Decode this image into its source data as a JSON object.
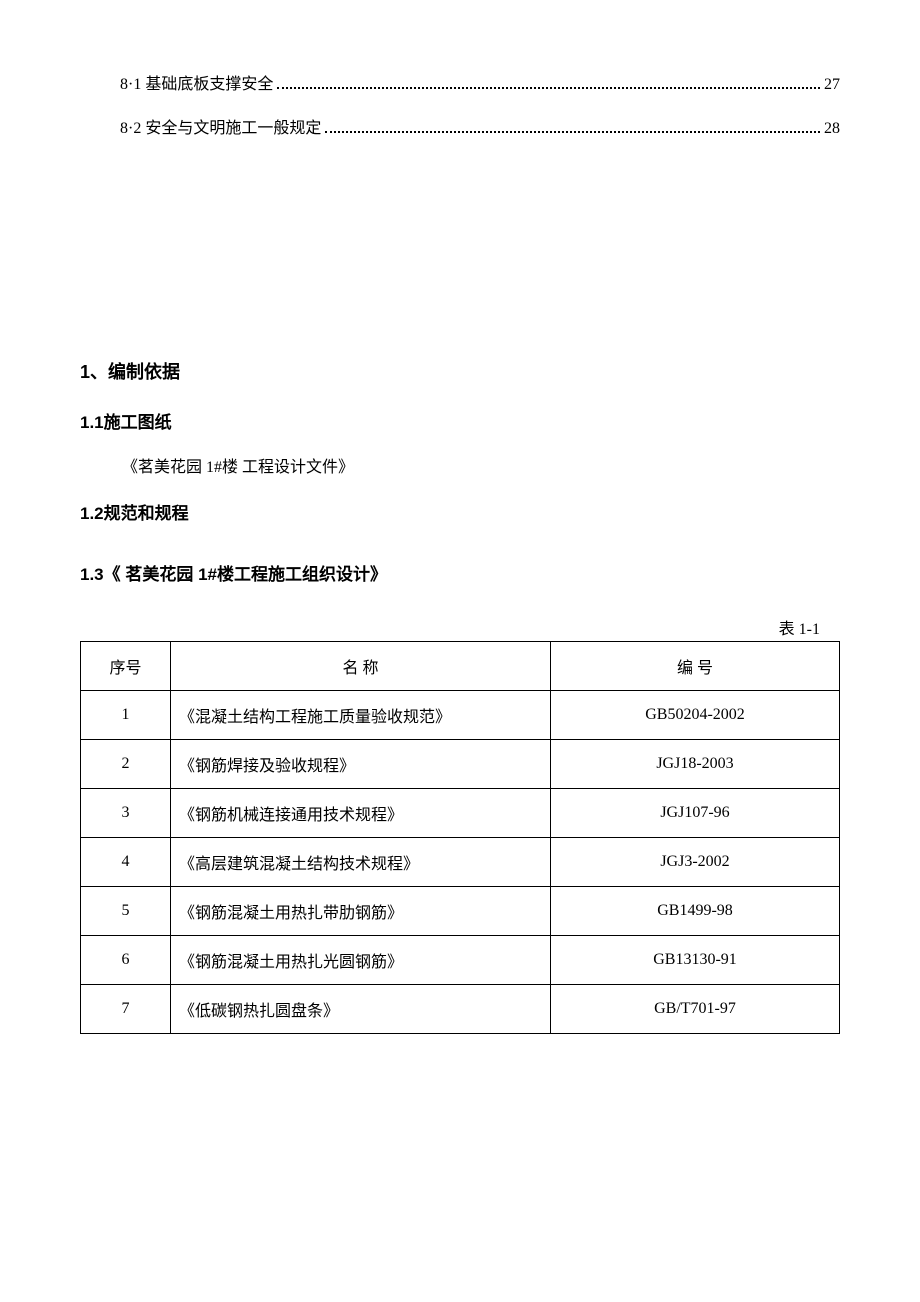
{
  "toc": {
    "items": [
      {
        "label": "8·1 基础底板支撑安全",
        "page": "27"
      },
      {
        "label": "8·2 安全与文明施工一般规定",
        "page": "28"
      }
    ]
  },
  "sections": {
    "h1": "1、编制依据",
    "h2_1": "1.1施工图纸",
    "body_1": "《茗美花园  1#楼  工程设计文件》",
    "h2_2": "1.2规范和规程",
    "h2_3": "1.3《  茗美花园  1#楼工程施工组织设计》"
  },
  "table": {
    "caption": "表  1-1",
    "headers": {
      "seq": "序号",
      "name": "名          称",
      "code": "编        号"
    },
    "rows": [
      {
        "seq": "1",
        "name": "《混凝土结构工程施工质量验收规范》",
        "code": "GB50204-2002"
      },
      {
        "seq": "2",
        "name": "《钢筋焊接及验收规程》",
        "code": "JGJ18-2003"
      },
      {
        "seq": "3",
        "name": "《钢筋机械连接通用技术规程》",
        "code": "JGJ107-96"
      },
      {
        "seq": "4",
        "name": "《高层建筑混凝土结构技术规程》",
        "code": "JGJ3-2002"
      },
      {
        "seq": "5",
        "name": "《钢筋混凝土用热扎带肋钢筋》",
        "code": "GB1499-98"
      },
      {
        "seq": "6",
        "name": "《钢筋混凝土用热扎光圆钢筋》",
        "code": "GB13130-91"
      },
      {
        "seq": "7",
        "name": "《低碳钢热扎圆盘条》",
        "code": "GB/T701-97"
      }
    ]
  },
  "style": {
    "text_color": "#000000",
    "background": "#ffffff",
    "font_body": "SimSun",
    "font_heading": "SimHei",
    "fontsize_body": 16,
    "fontsize_heading": 18,
    "table_border_color": "#000000",
    "col_widths": {
      "seq": 90,
      "name": 380
    }
  }
}
